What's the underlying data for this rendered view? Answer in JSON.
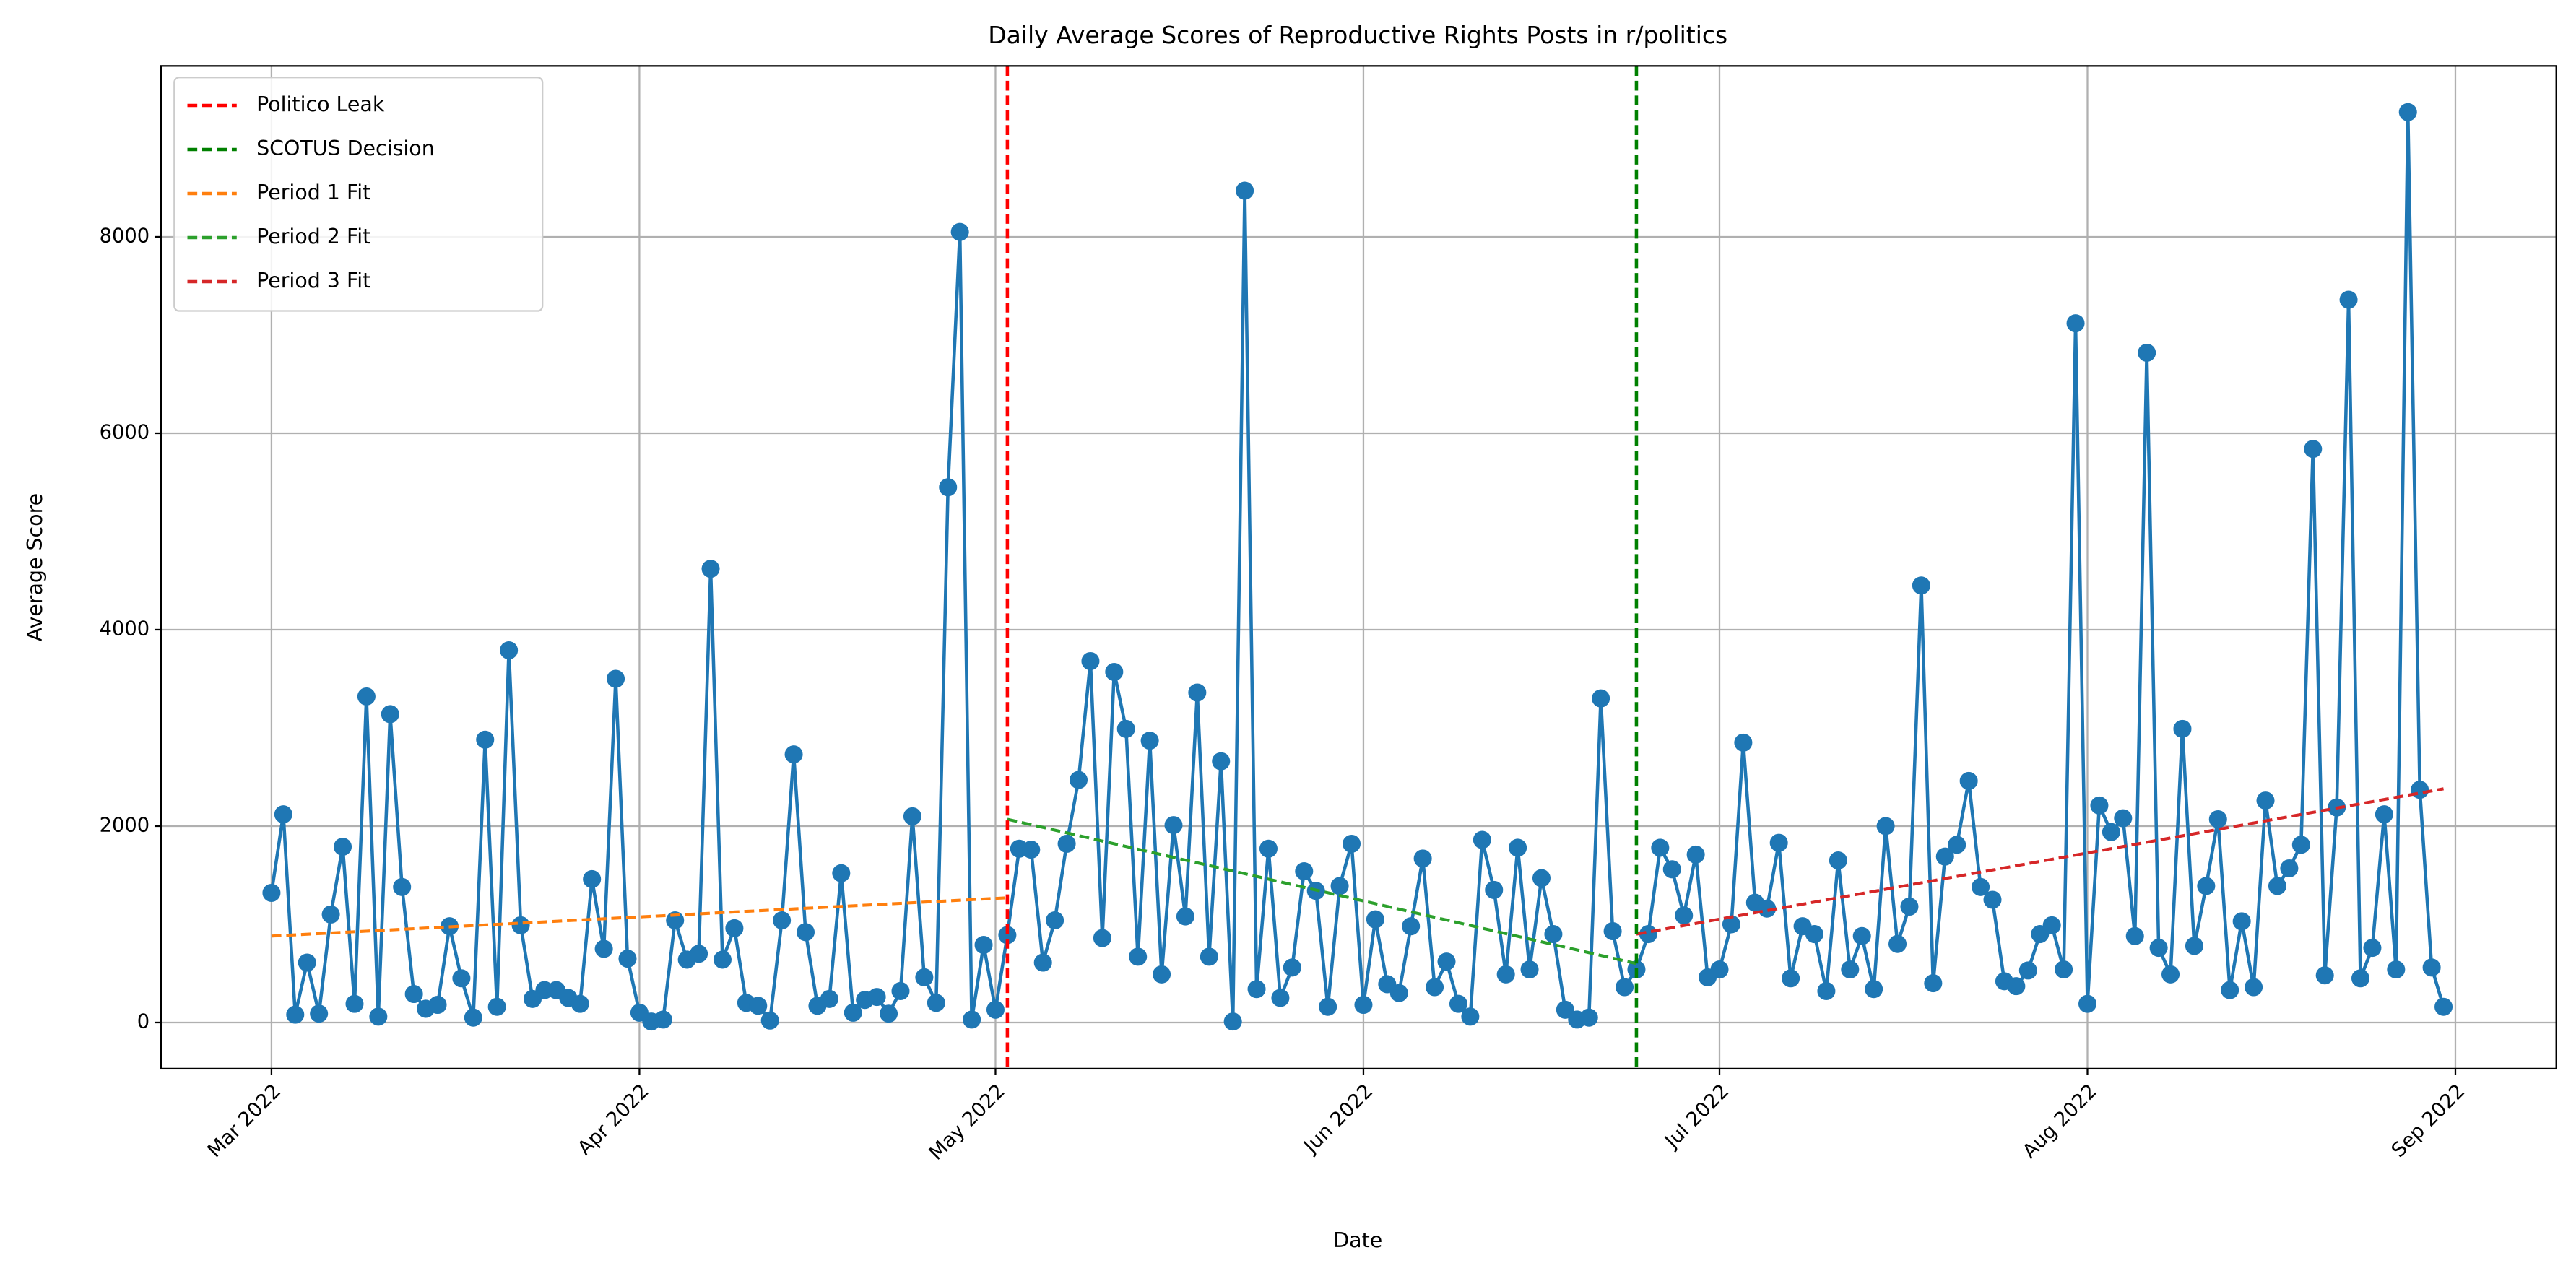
{
  "chart_data": {
    "type": "line",
    "title": "Daily Average Scores of Reproductive Rights Posts in r/politics",
    "xlabel": "Date",
    "ylabel": "Average Score",
    "xlim": [
      -9.3,
      192.5
    ],
    "ylim": [
      -470,
      9740
    ],
    "xticks": [
      {
        "value": 0,
        "label": "Mar 2022"
      },
      {
        "value": 31,
        "label": "Apr 2022"
      },
      {
        "value": 61,
        "label": "May 2022"
      },
      {
        "value": 92,
        "label": "Jun 2022"
      },
      {
        "value": 122,
        "label": "Jul 2022"
      },
      {
        "value": 153,
        "label": "Aug 2022"
      },
      {
        "value": 184,
        "label": "Sep 2022"
      }
    ],
    "yticks": [
      0,
      2000,
      4000,
      6000,
      8000
    ],
    "grid": true,
    "legend": "upper left",
    "series": [
      {
        "color": "#1f77b4",
        "marker": "o",
        "values": [
          1320,
          2120,
          80,
          610,
          90,
          1100,
          1790,
          190,
          3320,
          60,
          3140,
          1380,
          290,
          140,
          180,
          980,
          450,
          50,
          2880,
          160,
          3790,
          990,
          240,
          330,
          330,
          250,
          190,
          1460,
          750,
          3500,
          650,
          100,
          10,
          30,
          1040,
          640,
          700,
          4620,
          640,
          960,
          200,
          170,
          20,
          1040,
          2730,
          920,
          170,
          240,
          1520,
          100,
          230,
          260,
          90,
          320,
          2100,
          460,
          200,
          5450,
          8050,
          30,
          790,
          130,
          890,
          1770,
          1760,
          610,
          1040,
          1820,
          2470,
          3680,
          860,
          3570,
          2990,
          670,
          2870,
          490,
          2010,
          1080,
          3360,
          670,
          2660,
          10,
          8470,
          340,
          1770,
          250,
          560,
          1540,
          1340,
          160,
          1390,
          1820,
          180,
          1050,
          390,
          300,
          980,
          1670,
          360,
          620,
          190,
          60,
          1860,
          1350,
          490,
          1780,
          540,
          1470,
          900,
          130,
          30,
          50,
          3300,
          930,
          360,
          540,
          900,
          1780,
          1560,
          1090,
          1710,
          460,
          540,
          1000,
          2850,
          1220,
          1160,
          1830,
          450,
          980,
          900,
          320,
          1650,
          540,
          880,
          340,
          2000,
          800,
          1180,
          4450,
          400,
          1690,
          1810,
          2460,
          1380,
          1250,
          420,
          370,
          530,
          900,
          990,
          540,
          7120,
          190,
          2210,
          1940,
          2080,
          880,
          6820,
          760,
          490,
          2990,
          780,
          1390,
          2070,
          330,
          1030,
          360,
          2260,
          1390,
          1570,
          1810,
          5840,
          480,
          2190,
          7360,
          450,
          760,
          2120,
          540,
          9270,
          2370,
          560,
          160
        ]
      },
      {
        "name": "Period 1 Fit",
        "color": "#ff7f0e",
        "linestyle": "dashed",
        "x": [
          0,
          62
        ],
        "values": [
          880,
          1270
        ]
      },
      {
        "name": "Period 2 Fit",
        "color": "#2ca02c",
        "linestyle": "dashed",
        "x": [
          62,
          115
        ],
        "values": [
          2070,
          600
        ]
      },
      {
        "name": "Period 3 Fit",
        "color": "#d62728",
        "linestyle": "dashed",
        "x": [
          115,
          183
        ],
        "values": [
          900,
          2380
        ]
      }
    ],
    "vlines": [
      {
        "name": "Politico Leak",
        "color": "#ff0000",
        "x": 62
      },
      {
        "name": "SCOTUS Decision",
        "color": "#008000",
        "x": 115
      }
    ]
  }
}
